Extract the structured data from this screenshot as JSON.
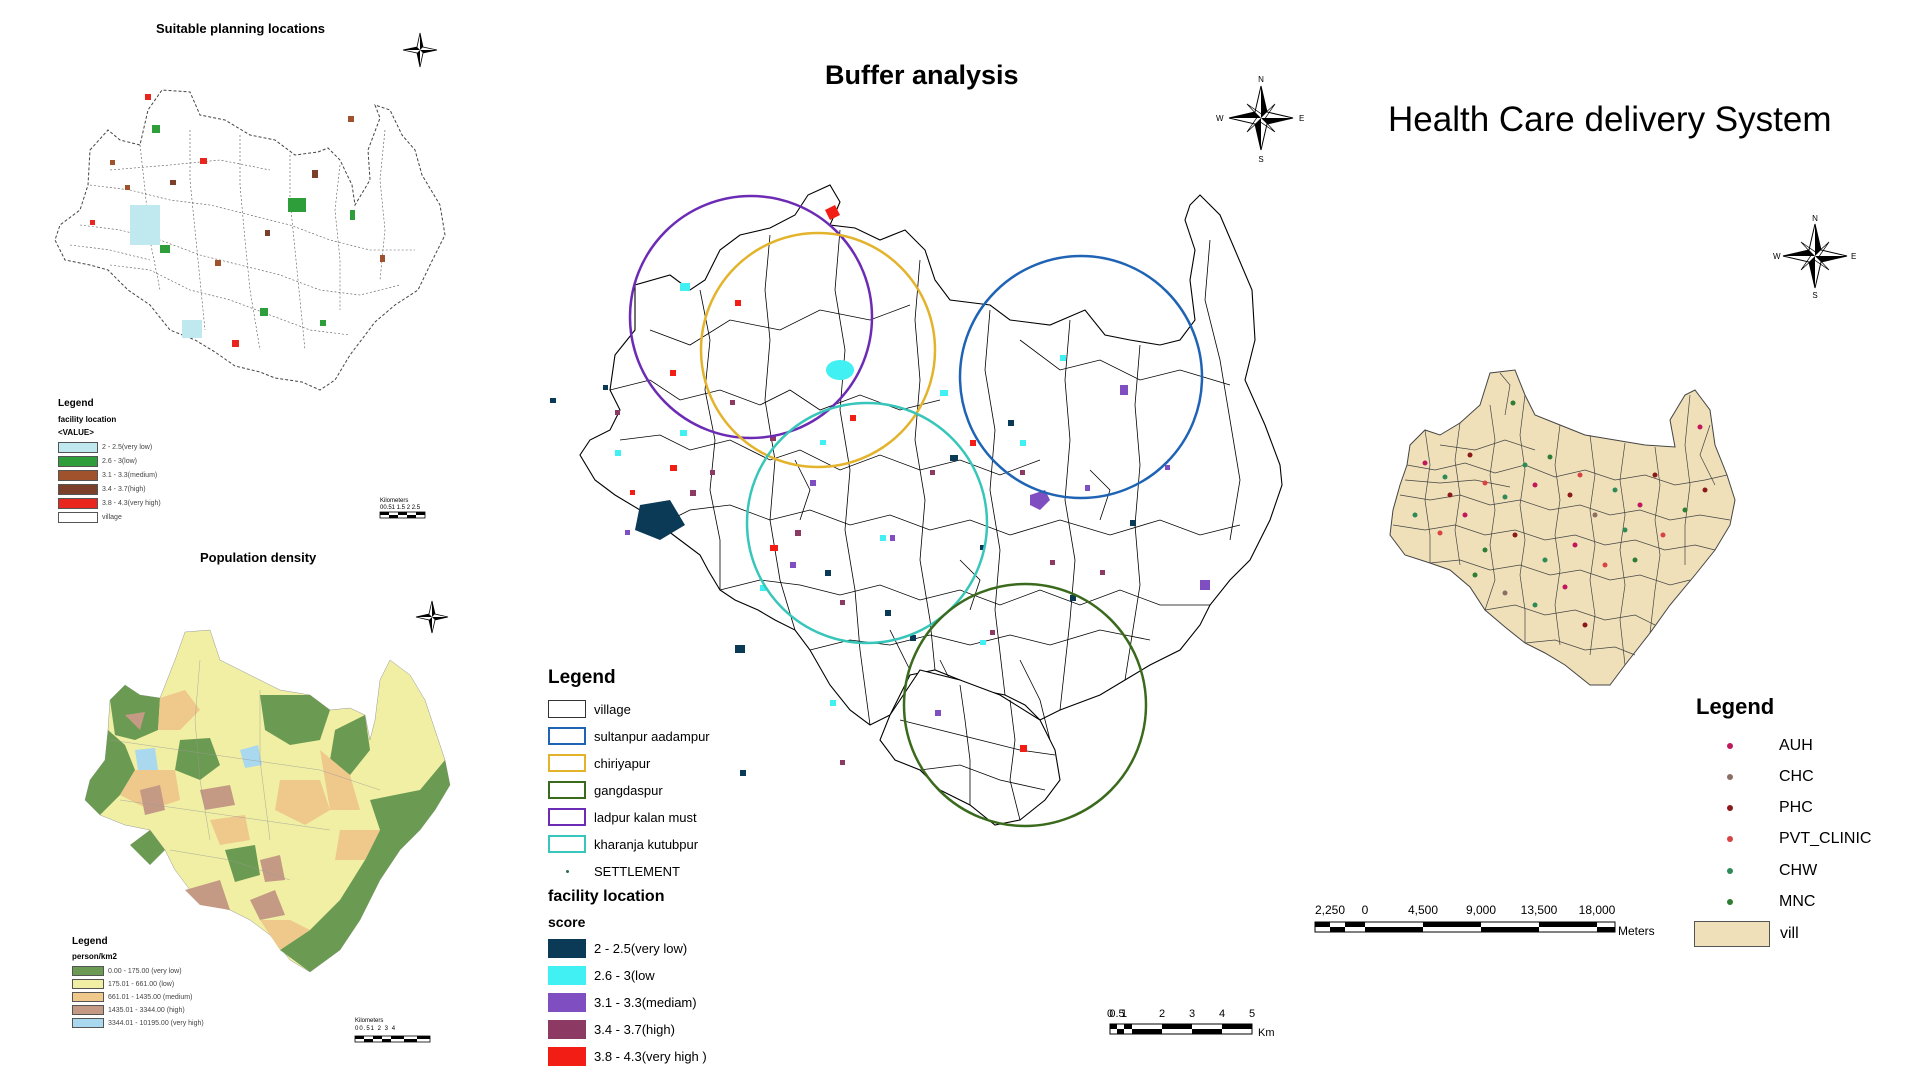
{
  "panels": {
    "suitable": {
      "title": "Suitable planning locations",
      "legend": {
        "title": "Legend",
        "subtitle": "facility location",
        "value_label": "<VALUE>",
        "items": [
          {
            "label": "2 - 2.5(very low)",
            "color": "#bfe9ee"
          },
          {
            "label": "2.6 - 3(low)",
            "color": "#2e9e3a"
          },
          {
            "label": "3.1 - 3.3(medium)",
            "color": "#a0522d"
          },
          {
            "label": "3.4 - 3.7(high)",
            "color": "#7b3f2a"
          },
          {
            "label": "3.8 - 4.3(very high)",
            "color": "#e8261e"
          },
          {
            "label": "village",
            "color": "#ffffff"
          }
        ]
      },
      "scale_label": "Kilometers",
      "scale_ticks": "00.51 1.5 2 2.5"
    },
    "density": {
      "title": "Population density",
      "legend": {
        "title": "Legend",
        "subtitle": "person/km2",
        "items": [
          {
            "label": "0.00 - 175.00 (very low)",
            "color": "#6b9a52"
          },
          {
            "label": "175.01 - 661.00 (low)",
            "color": "#f0efa3"
          },
          {
            "label": "661.01 - 1435.00 (medium)",
            "color": "#efc88c"
          },
          {
            "label": "1435.01 - 3344.00 (high)",
            "color": "#c49a85"
          },
          {
            "label": "3344.01 - 10195.00 (very high)",
            "color": "#a9d8ef"
          }
        ]
      },
      "scale_label": "Kilometers",
      "scale_ticks": "00.51 2 3 4"
    },
    "buffer": {
      "title": "Buffer analysis",
      "legend": {
        "title": "Legend",
        "buffers": [
          {
            "label": "village",
            "color": "#333333"
          },
          {
            "label": "sultanpur aadampur",
            "color": "#1f63b5"
          },
          {
            "label": "chiriyapur",
            "color": "#e3b32b"
          },
          {
            "label": "gangdaspur",
            "color": "#3a6a1b"
          },
          {
            "label": "ladpur kalan must",
            "color": "#6c2bb4"
          },
          {
            "label": "kharanja kutubpur",
            "color": "#37c6b9"
          }
        ],
        "settlement_label": "SETTLEMENT",
        "facility_title": "facility location",
        "score_title": "score",
        "scores": [
          {
            "label": "2 - 2.5(very low)",
            "color": "#0b3a57"
          },
          {
            "label": "2.6 - 3(low",
            "color": "#41f0f2"
          },
          {
            "label": "3.1 - 3.3(mediam)",
            "color": "#7f4fc2"
          },
          {
            "label": "3.4 - 3.7(high)",
            "color": "#8c3a63"
          },
          {
            "label": "3.8 - 4.3(very high )",
            "color": "#f21d14"
          }
        ]
      },
      "scale_ticks": [
        "0",
        "0.5",
        "1",
        "2",
        "3",
        "4",
        "5"
      ],
      "scale_unit": "Km"
    },
    "health": {
      "title": "Health Care delivery System",
      "legend": {
        "title": "Legend",
        "items": [
          {
            "label": "AUH",
            "color": "#c2185b"
          },
          {
            "label": "CHC",
            "color": "#8d6e63"
          },
          {
            "label": "PHC",
            "color": "#8b1a1a"
          },
          {
            "label": "PVT_CLINIC",
            "color": "#d84343"
          },
          {
            "label": "CHW",
            "color": "#2e8b57"
          },
          {
            "label": "MNC",
            "color": "#2e7d32"
          },
          {
            "label": "vill",
            "color": "#efe0b9"
          }
        ]
      },
      "scale_ticks": [
        "2,250",
        "0",
        "4,500",
        "9,000",
        "13,500",
        "18,000"
      ],
      "scale_unit": "Meters"
    }
  },
  "compass": {
    "n": "N",
    "s": "S",
    "e": "E",
    "w": "W"
  }
}
